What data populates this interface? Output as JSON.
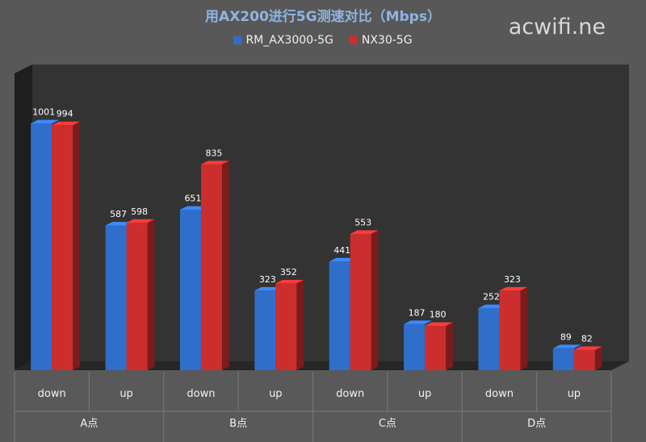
{
  "watermark": "acwifi.ne",
  "chart_data": {
    "type": "bar",
    "title": "用AX200进行5G测速对比（Mbps）",
    "groups": [
      "A点",
      "B点",
      "C点",
      "D点"
    ],
    "categories": [
      "down",
      "up",
      "down",
      "up",
      "down",
      "up",
      "down",
      "up"
    ],
    "series": [
      {
        "name": "RM_AX3000-5G",
        "color": "#2f6fca",
        "values": [
          1001,
          587,
          651,
          323,
          441,
          187,
          252,
          89
        ]
      },
      {
        "name": "NX30-5G",
        "color": "#cc2e2e",
        "values": [
          994,
          598,
          835,
          352,
          553,
          180,
          323,
          82
        ]
      }
    ],
    "ylim": [
      0,
      1001
    ],
    "grid": false,
    "legend": "top"
  }
}
